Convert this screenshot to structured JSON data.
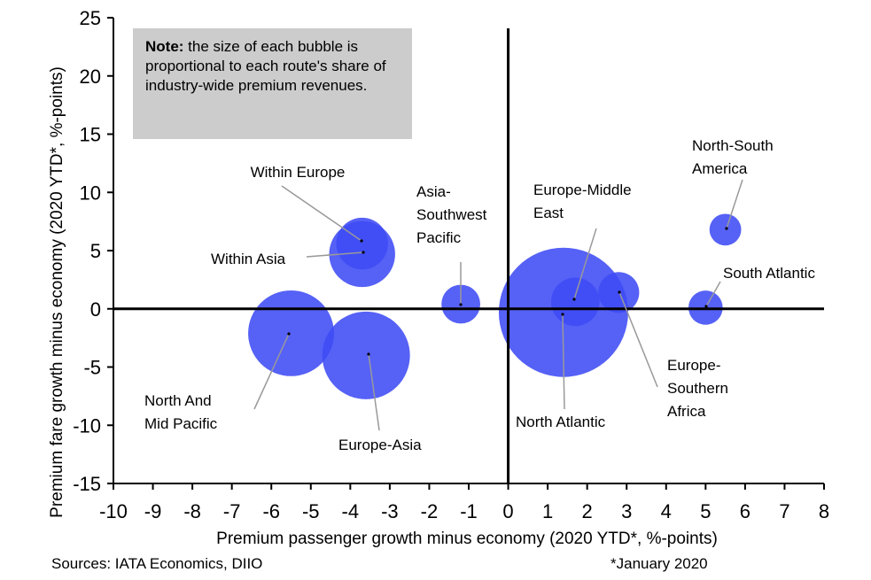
{
  "chart_data": {
    "type": "scatter",
    "bubble": true,
    "xlabel": "Premium passenger growth minus economy (2020 YTD*, %-points)",
    "ylabel": "Premium fare growth minus economy (2020 YTD*, %-points)",
    "xlim": [
      -10,
      8
    ],
    "ylim": [
      -15,
      25
    ],
    "x_ticks": [
      "-10",
      "-9",
      "-8",
      "-7",
      "-6",
      "-5",
      "-4",
      "-3",
      "-2",
      "-1",
      "0",
      "1",
      "2",
      "3",
      "4",
      "5",
      "6",
      "7",
      "8"
    ],
    "y_ticks": [
      "25",
      "20",
      "15",
      "10",
      "5",
      "0",
      "-5",
      "-10",
      "-15"
    ],
    "bubble_color": "#3f4bf5",
    "series": [
      {
        "name": "North Atlantic",
        "x": 1.4,
        "y": -0.3,
        "size": 100
      },
      {
        "name": "North And Mid Pacific",
        "x": -5.5,
        "y": -2.1,
        "size": 44
      },
      {
        "name": "Europe-Asia",
        "x": -3.6,
        "y": -4.0,
        "size": 46
      },
      {
        "name": "Within Asia",
        "x": -3.7,
        "y": 4.7,
        "size": 26
      },
      {
        "name": "Within Europe",
        "x": -3.7,
        "y": 5.6,
        "size": 16
      },
      {
        "name": "Europe-Middle East",
        "x": 1.7,
        "y": 0.6,
        "size": 14
      },
      {
        "name": "Europe-Southern Africa",
        "x": 2.8,
        "y": 1.4,
        "size": 10
      },
      {
        "name": "Asia-Southwest Pacific",
        "x": -1.2,
        "y": 0.4,
        "size": 9
      },
      {
        "name": "North-South America",
        "x": 5.5,
        "y": 6.8,
        "size": 6
      },
      {
        "name": "South Atlantic",
        "x": 5.0,
        "y": 0.1,
        "size": 7
      }
    ],
    "labels": [
      {
        "series": "Within Europe",
        "lines": [
          "Within Europe"
        ]
      },
      {
        "series": "Within Asia",
        "lines": [
          "Within Asia"
        ]
      },
      {
        "series": "Asia-Southwest Pacific",
        "lines": [
          "Asia-",
          "Southwest",
          "Pacific"
        ]
      },
      {
        "series": "Europe-Middle East",
        "lines": [
          "Europe-Middle",
          "East"
        ]
      },
      {
        "series": "North-South America",
        "lines": [
          "North-South",
          "America"
        ]
      },
      {
        "series": "South Atlantic",
        "lines": [
          "South Atlantic"
        ]
      },
      {
        "series": "Europe-Southern Africa",
        "lines": [
          "Europe-",
          "Southern",
          "Africa"
        ]
      },
      {
        "series": "North Atlantic",
        "lines": [
          "North Atlantic"
        ]
      },
      {
        "series": "Europe-Asia",
        "lines": [
          "Europe-Asia"
        ]
      },
      {
        "series": "North And Mid Pacific",
        "lines": [
          "North And",
          "Mid Pacific"
        ]
      }
    ]
  },
  "note": {
    "bold": "Note:",
    "text": " the size of each bubble is proportional to each route's share of industry-wide premium revenues."
  },
  "footer": {
    "sources": "Sources: IATA Economics, DIIO",
    "footnote": "*January 2020"
  }
}
